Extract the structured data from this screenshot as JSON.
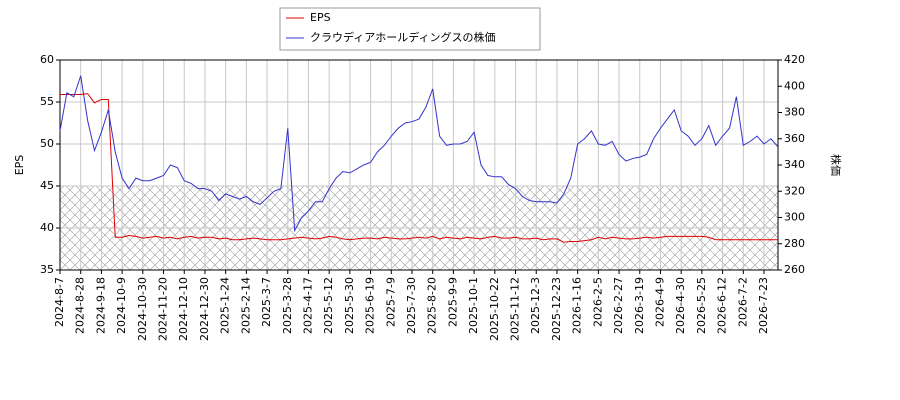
{
  "chart_data": {
    "type": "line",
    "categories": [
      "2024-8-7",
      null,
      null,
      "2024-8-28",
      null,
      null,
      "2024-9-18",
      null,
      null,
      "2024-10-9",
      null,
      null,
      "2024-10-30",
      null,
      null,
      "2024-11-20",
      null,
      null,
      "2024-12-10",
      null,
      null,
      "2024-12-30",
      null,
      null,
      "2025-1-24",
      null,
      null,
      "2025-2-14",
      null,
      null,
      "2025-3-7",
      null,
      null,
      "2025-3-28",
      null,
      null,
      "2025-4-17",
      null,
      null,
      "2025-5-12",
      null,
      null,
      "2025-5-30",
      null,
      null,
      "2025-6-19",
      null,
      null,
      "2025-7-9",
      null,
      null,
      "2025-7-30",
      null,
      null,
      "2025-8-20",
      null,
      null,
      "2025-9-9",
      null,
      null,
      "2025-10-1",
      null,
      null,
      "2025-10-22",
      null,
      null,
      "2025-11-12",
      null,
      null,
      "2025-12-3",
      null,
      null,
      "2025-12-23",
      null,
      null,
      "2026-1-16",
      null,
      null,
      "2026-2-5",
      null,
      null,
      "2026-2-27",
      null,
      null,
      "2026-3-19",
      null,
      null,
      "2026-4-9",
      null,
      null,
      "2026-4-30",
      null,
      null,
      "2026-5-25",
      null,
      null,
      "2026-6-12",
      null,
      null,
      "2026-7-2",
      null,
      null,
      "2026-7-23",
      null,
      null
    ],
    "series": [
      {
        "name": "EPS",
        "color": "#dd0000",
        "values": [
          55.9,
          55.9,
          55.9,
          55.9,
          56.0,
          54.9,
          55.3,
          55.3,
          38.9,
          38.9,
          39.1,
          39.0,
          38.8,
          38.9,
          39.0,
          38.8,
          38.9,
          38.7,
          38.9,
          39.0,
          38.8,
          38.9,
          38.9,
          38.7,
          38.8,
          38.6,
          38.6,
          38.7,
          38.8,
          38.7,
          38.6,
          38.6,
          38.6,
          38.7,
          38.8,
          38.9,
          38.8,
          38.7,
          38.8,
          39.0,
          38.9,
          38.7,
          38.6,
          38.7,
          38.8,
          38.8,
          38.7,
          38.9,
          38.8,
          38.7,
          38.7,
          38.8,
          38.9,
          38.8,
          39.0,
          38.7,
          38.9,
          38.8,
          38.7,
          38.9,
          38.8,
          38.7,
          38.9,
          39.0,
          38.8,
          38.8,
          38.9,
          38.7,
          38.7,
          38.8,
          38.6,
          38.7,
          38.7,
          38.3,
          38.4,
          38.4,
          38.5,
          38.6,
          38.9,
          38.7,
          38.9,
          38.8,
          38.7,
          38.7,
          38.8,
          38.9,
          38.8,
          38.9,
          39.0,
          39.0,
          39.0,
          39.0,
          39.0,
          39.0,
          38.9,
          38.6,
          38.6,
          38.6,
          38.6,
          38.6,
          38.6,
          38.6,
          38.6,
          38.6,
          38.6
        ]
      },
      {
        "name": "クラウディアホールディングスの株価",
        "color": "#3333cc",
        "axis": "y2",
        "values": [
          366,
          395,
          392,
          408,
          374,
          351,
          365,
          382,
          350,
          330,
          322,
          330,
          328,
          328,
          330,
          332,
          340,
          338,
          328,
          326,
          322,
          322,
          320,
          313,
          318,
          316,
          314,
          316,
          312,
          310,
          315,
          320,
          322,
          368,
          290,
          300,
          305,
          312,
          312,
          322,
          330,
          335,
          334,
          337,
          340,
          342,
          350,
          355,
          362,
          368,
          372,
          373,
          375,
          384,
          398,
          362,
          355,
          356,
          356,
          358,
          365,
          340,
          332,
          331,
          331,
          325,
          322,
          316,
          313,
          312,
          312,
          312,
          311,
          318,
          330,
          356,
          360,
          366,
          356,
          355,
          358,
          348,
          343,
          345,
          346,
          348,
          360,
          368,
          375,
          382,
          366,
          362,
          355,
          360,
          370,
          355,
          362,
          368,
          392,
          355,
          358,
          362,
          356,
          360,
          354
        ]
      }
    ],
    "ylabel": "EPS",
    "y2label": "株価",
    "ylim": [
      35,
      60
    ],
    "yticks": [
      35,
      40,
      45,
      50,
      55,
      60
    ],
    "y2lim": [
      260,
      420
    ],
    "y2ticks": [
      260,
      280,
      300,
      320,
      340,
      360,
      380,
      400,
      420
    ],
    "shaded_range": [
      35,
      45
    ],
    "grid": true
  }
}
